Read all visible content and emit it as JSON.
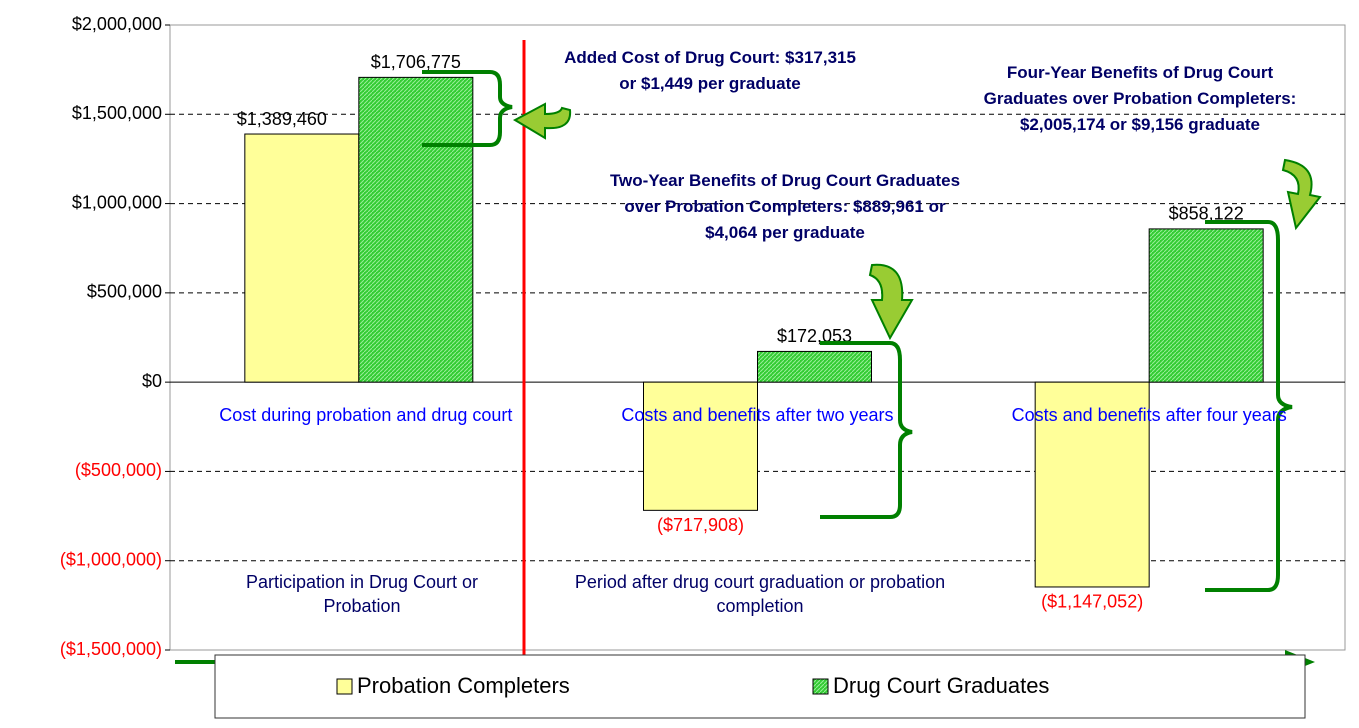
{
  "chart_data": {
    "type": "bar",
    "categories": [
      "Cost during probation and drug court",
      "Costs and benefits after two years",
      "Costs and benefits after four years"
    ],
    "series": [
      {
        "name": "Probation Completers",
        "color": "#ffff99",
        "values": [
          1389460,
          -717908,
          -1147052
        ],
        "value_labels": [
          "$1,389,460",
          "($717,908)",
          "($1,147,052)"
        ]
      },
      {
        "name": "Drug Court Graduates",
        "color": "#33cc33",
        "values": [
          1706775,
          172053,
          858122
        ],
        "value_labels": [
          "$1,706,775",
          "$172,053",
          "$858,122"
        ]
      }
    ],
    "ylim": [
      -1500000,
      2000000
    ],
    "yticks": [
      {
        "value": -1500000,
        "label": "($1,500,000)"
      },
      {
        "value": -1000000,
        "label": "($1,000,000)"
      },
      {
        "value": -500000,
        "label": "($500,000)"
      },
      {
        "value": 0,
        "label": "$0"
      },
      {
        "value": 500000,
        "label": "$500,000"
      },
      {
        "value": 1000000,
        "label": "$1,000,000"
      },
      {
        "value": 1500000,
        "label": "$1,500,000"
      },
      {
        "value": 2000000,
        "label": "$2,000,000"
      }
    ],
    "grid": true,
    "legend": "bottom",
    "annotations": [
      "Added Cost of Drug Court: $317,315 or $1,449 per graduate",
      "Two-Year Benefits of Drug Court Graduates over Probation Completers: $889,961 or $4,064 per graduate",
      "Four-Year Benefits of Drug Court Graduates over Probation Completers: $2,005,174 or $9,156 graduate",
      "Participation in Drug Court or Probation",
      "Period after drug court graduation or probation completion"
    ]
  }
}
